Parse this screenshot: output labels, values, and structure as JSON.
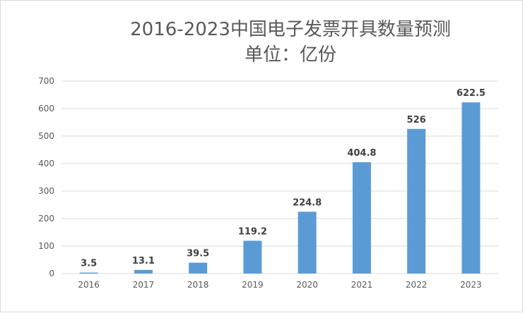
{
  "chart_data": {
    "type": "bar",
    "title": "2016-2023中国电子发票开具数量预测",
    "subtitle": "单位：亿份",
    "categories": [
      "2016",
      "2017",
      "2018",
      "2019",
      "2020",
      "2021",
      "2022",
      "2023"
    ],
    "values": [
      3.5,
      13.1,
      39.5,
      119.2,
      224.8,
      404.8,
      526,
      622.5
    ],
    "data_labels": [
      "3.5",
      "13.1",
      "39.5",
      "119.2",
      "224.8",
      "404.8",
      "526",
      "622.5"
    ],
    "y_ticks": [
      "0",
      "100",
      "200",
      "300",
      "400",
      "500",
      "600",
      "700"
    ],
    "ylim": [
      0,
      700
    ],
    "xlabel": "",
    "ylabel": "",
    "grid": true,
    "legend": "none",
    "colors": {
      "bar": "#5b9bd5",
      "grid": "#d9d9d9",
      "text": "#595959",
      "label": "#404040"
    }
  }
}
